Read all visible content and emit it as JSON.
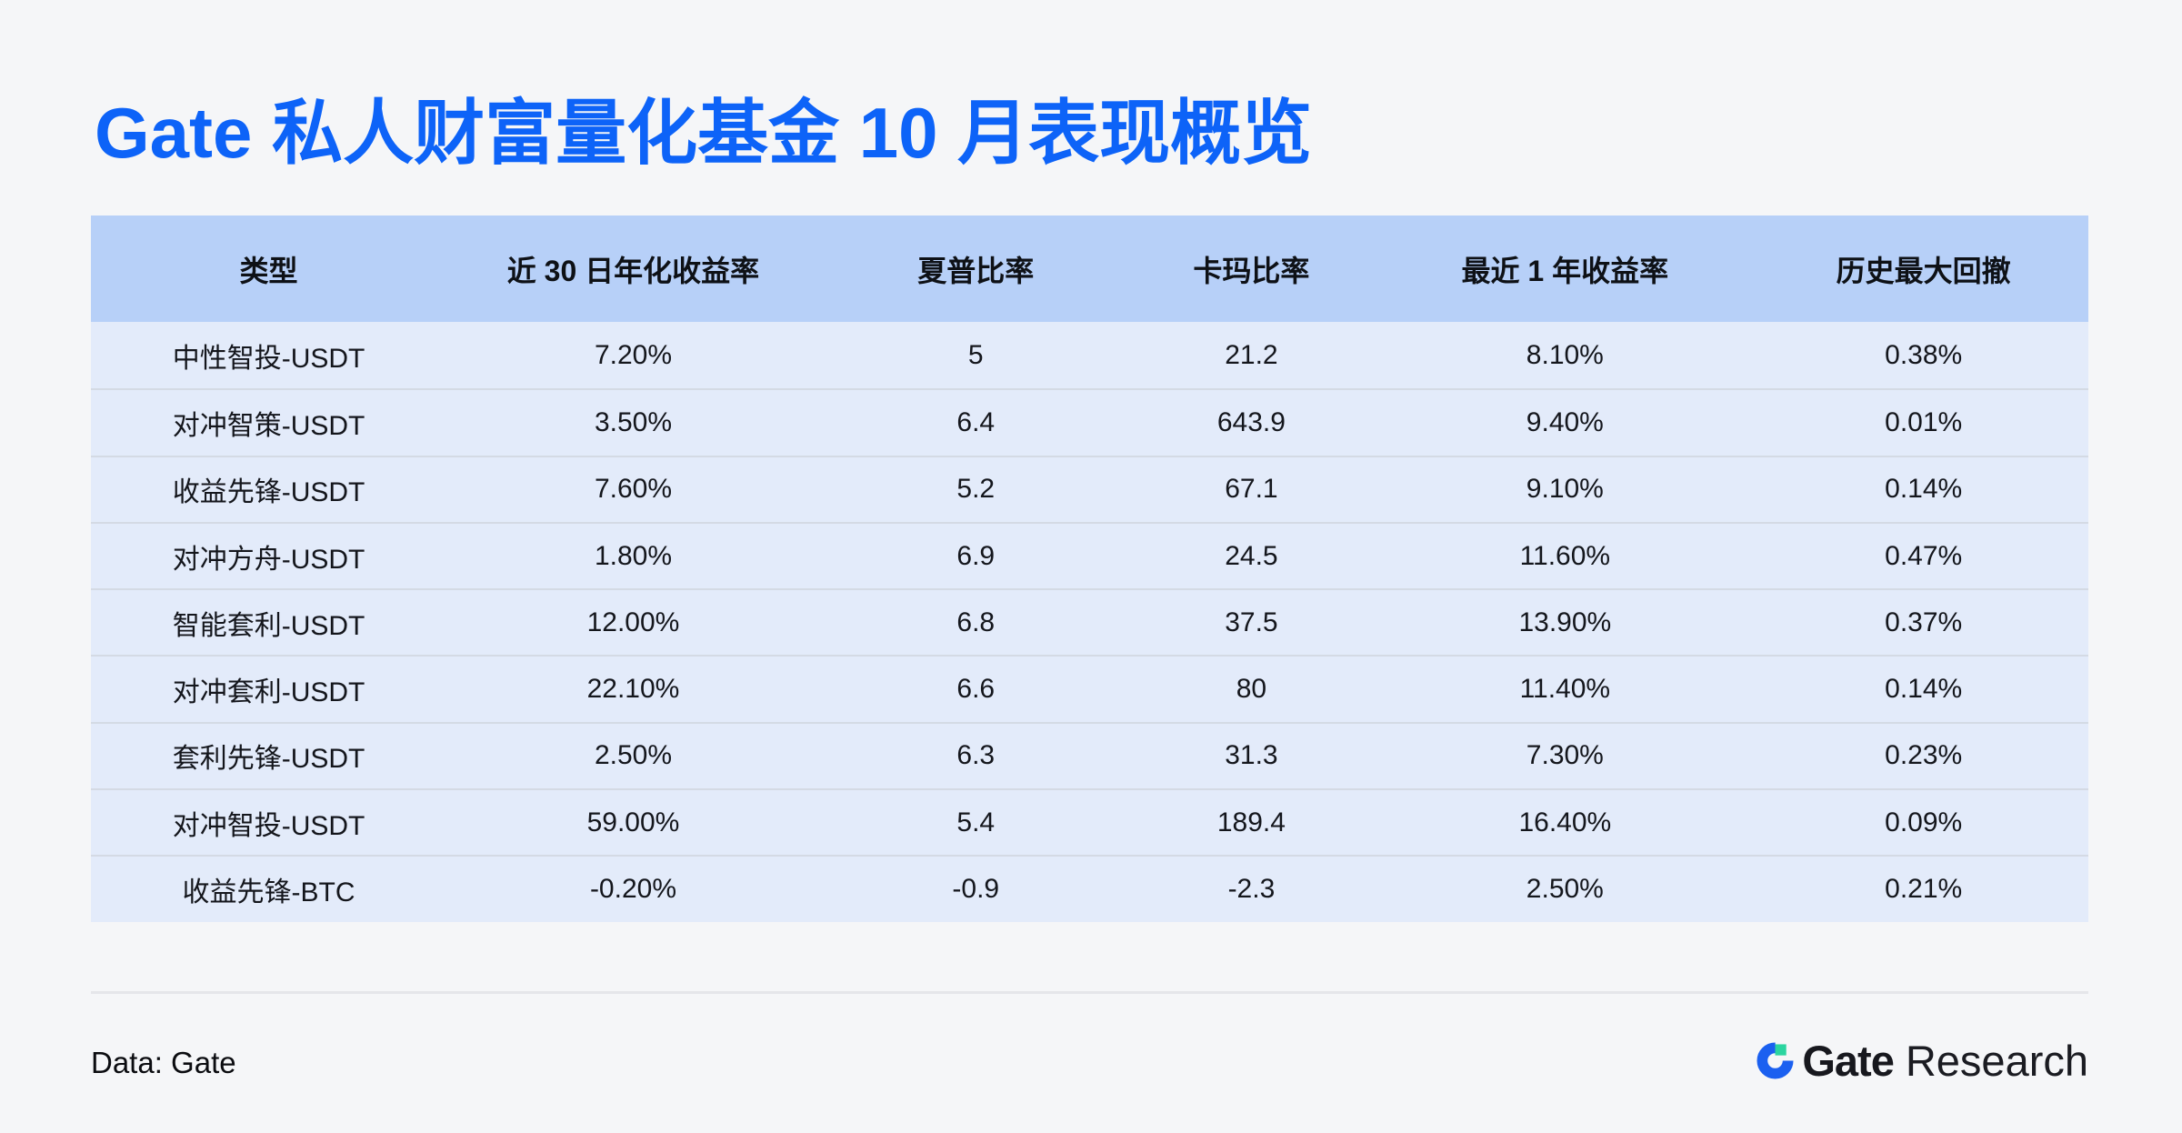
{
  "title": "Gate 私人财富量化基金 10 月表现概览",
  "chart_data": {
    "type": "table",
    "title": "Gate 私人财富量化基金 10 月表现概览",
    "columns": [
      "类型",
      "近 30 日年化收益率",
      "夏普比率",
      "卡玛比率",
      "最近 1 年收益率",
      "历史最大回撤"
    ],
    "rows": [
      [
        "中性智投-USDT",
        "7.20%",
        "5",
        "21.2",
        "8.10%",
        "0.38%"
      ],
      [
        "对冲智策-USDT",
        "3.50%",
        "6.4",
        "643.9",
        "9.40%",
        "0.01%"
      ],
      [
        "收益先锋-USDT",
        "7.60%",
        "5.2",
        "67.1",
        "9.10%",
        "0.14%"
      ],
      [
        "对冲方舟-USDT",
        "1.80%",
        "6.9",
        "24.5",
        "11.60%",
        "0.47%"
      ],
      [
        "智能套利-USDT",
        "12.00%",
        "6.8",
        "37.5",
        "13.90%",
        "0.37%"
      ],
      [
        "对冲套利-USDT",
        "22.10%",
        "6.6",
        "80",
        "11.40%",
        "0.14%"
      ],
      [
        "套利先锋-USDT",
        "2.50%",
        "6.3",
        "31.3",
        "7.30%",
        "0.23%"
      ],
      [
        "对冲智投-USDT",
        "59.00%",
        "5.4",
        "189.4",
        "16.40%",
        "0.09%"
      ],
      [
        "收益先锋-BTC",
        "-0.20%",
        "-0.9",
        "-2.3",
        "2.50%",
        "0.21%"
      ]
    ]
  },
  "footer": {
    "source": "Data: Gate",
    "logo": {
      "brand": "Gate",
      "suffix": "Research"
    }
  },
  "colors": {
    "title_blue": "#0d63f8",
    "header_bg": "#b7d0f8",
    "row_bg": "#e3ebfa",
    "row_divider": "#d4dae4",
    "page_background": "#f5f6f8",
    "logo_blue": "#1b60f0",
    "logo_green": "#2bd5a0",
    "text_dark": "#14161c"
  }
}
